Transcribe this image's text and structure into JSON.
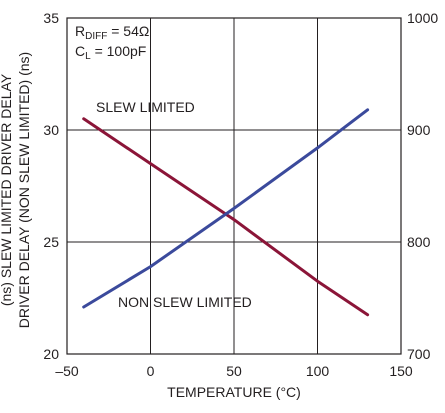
{
  "chart_data": {
    "type": "line",
    "xlabel": "TEMPERATURE (°C)",
    "ylabel_left": "DRIVER DELAY (NON SLEW LIMITED) (ns)",
    "ylabel_left_partial": "(ns) SLEW LIMITED DRIVER DELAY",
    "xlim": [
      -50,
      150
    ],
    "ylim_left": [
      20,
      35
    ],
    "ylim_right": [
      700,
      1000
    ],
    "x_ticks": [
      "–50",
      "0",
      "50",
      "100",
      "150"
    ],
    "y_ticks_left": [
      "20",
      "25",
      "30",
      "35"
    ],
    "y_ticks_right": [
      "700",
      "800",
      "900",
      "1000"
    ],
    "grid": true,
    "conditions": {
      "rdiff": {
        "base": "R",
        "sub": "DIFF",
        "rest": " = 54Ω"
      },
      "cl": {
        "base": "C",
        "sub": "L",
        "rest": " = 100pF"
      }
    },
    "series": [
      {
        "name": "SLEW LIMITED",
        "axis": "right",
        "color": "#8b1538",
        "x": [
          -40,
          0,
          50,
          100,
          130
        ],
        "y": [
          910,
          870,
          820,
          765,
          735
        ]
      },
      {
        "name": "NON SLEW LIMITED",
        "axis": "left",
        "color": "#3b4a9c",
        "x": [
          -40,
          0,
          50,
          100,
          130
        ],
        "y": [
          22.1,
          23.9,
          26.5,
          29.2,
          30.9
        ]
      }
    ]
  }
}
